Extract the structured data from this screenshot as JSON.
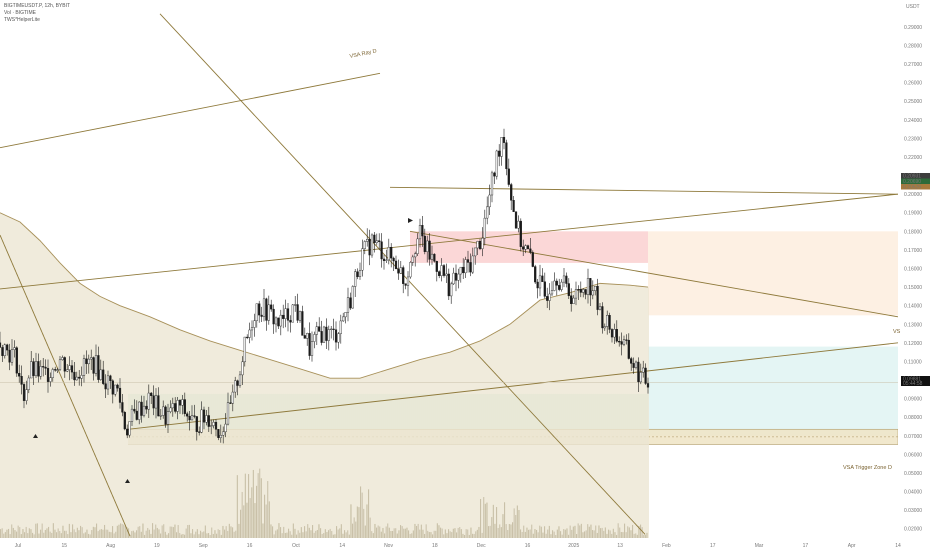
{
  "header": {
    "symbol_line": "BIGTIMEUSDT.P, 12h, BYBIT",
    "volume_line": "Vol · BIGTIME",
    "indicator_line": "TWS*HelperLite"
  },
  "price_axis": {
    "currency_label": "USDT"
  },
  "annotations": {
    "ray_label": "VSA Ray D",
    "trigger_label": "VSA Trigger Zone D",
    "edge_label": "VS"
  },
  "price_tags": [
    {
      "value": "0.20931",
      "color": "#3d3d3d"
    },
    {
      "value": "0.20690",
      "color": "#2e6b3a"
    },
    {
      "value": "0.20526",
      "color": "#a87a3c"
    },
    {
      "value": "0.09881",
      "color": "#111111",
      "sub": "05:44:58"
    }
  ],
  "colors": {
    "ribbon_fill": "#ece6d3",
    "ribbon_edge": "#a8915a",
    "line_color": "#8f7a3c",
    "red_zone": "#fbd3d3",
    "peach_zone": "#fdeee0",
    "green_zone": "#d4efe4",
    "cyan_zone": "#e1f4f3",
    "trigger_zone": "#f0e6c8",
    "candle": "#1a1a1a",
    "volume": "#c9c0a8"
  },
  "chart_data": {
    "type": "candlestick",
    "symbol": "BIGTIMEUSDT.P",
    "timeframe": "12h",
    "exchange": "BYBIT",
    "y_ticks": [
      "0.29000",
      "0.28000",
      "0.27000",
      "0.26000",
      "0.25000",
      "0.24000",
      "0.23000",
      "0.22000",
      "0.21000",
      "0.20000",
      "0.19000",
      "0.18000",
      "0.17000",
      "0.16000",
      "0.15000",
      "0.14000",
      "0.13000",
      "0.12000",
      "0.11000",
      "0.10000",
      "0.09000",
      "0.08000",
      "0.07000",
      "0.06000",
      "0.05000",
      "0.04000",
      "0.03000",
      "0.02000"
    ],
    "x_ticks": [
      "Jul",
      "15",
      "Aug",
      "19",
      "Sep",
      "16",
      "Oct",
      "14",
      "Nov",
      "18",
      "Dec",
      "16",
      "2025",
      "13",
      "Feb",
      "17",
      "Mar",
      "17",
      "Apr",
      "14"
    ],
    "ylim": [
      0.015,
      0.298
    ],
    "last_price": 0.09881,
    "price_path": [
      {
        "t": 0,
        "p": 0.12
      },
      {
        "t": 8,
        "p": 0.116
      },
      {
        "t": 16,
        "p": 0.112
      },
      {
        "t": 23,
        "p": 0.09
      },
      {
        "t": 30,
        "p": 0.105
      },
      {
        "t": 45,
        "p": 0.103
      },
      {
        "t": 60,
        "p": 0.111
      },
      {
        "t": 75,
        "p": 0.104
      },
      {
        "t": 93,
        "p": 0.11
      },
      {
        "t": 105,
        "p": 0.1
      },
      {
        "t": 118,
        "p": 0.094
      },
      {
        "t": 126,
        "p": 0.073
      },
      {
        "t": 135,
        "p": 0.082
      },
      {
        "t": 150,
        "p": 0.09
      },
      {
        "t": 165,
        "p": 0.08
      },
      {
        "t": 180,
        "p": 0.086
      },
      {
        "t": 195,
        "p": 0.076
      },
      {
        "t": 208,
        "p": 0.081
      },
      {
        "t": 220,
        "p": 0.072
      },
      {
        "t": 232,
        "p": 0.087
      },
      {
        "t": 245,
        "p": 0.118
      },
      {
        "t": 256,
        "p": 0.14
      },
      {
        "t": 265,
        "p": 0.138
      },
      {
        "t": 280,
        "p": 0.13
      },
      {
        "t": 295,
        "p": 0.14
      },
      {
        "t": 310,
        "p": 0.116
      },
      {
        "t": 320,
        "p": 0.126
      },
      {
        "t": 335,
        "p": 0.124
      },
      {
        "t": 350,
        "p": 0.143
      },
      {
        "t": 360,
        "p": 0.165
      },
      {
        "t": 372,
        "p": 0.175
      },
      {
        "t": 385,
        "p": 0.168
      },
      {
        "t": 398,
        "p": 0.162
      },
      {
        "t": 405,
        "p": 0.152
      },
      {
        "t": 412,
        "p": 0.17
      },
      {
        "t": 420,
        "p": 0.178
      },
      {
        "t": 428,
        "p": 0.168
      },
      {
        "t": 440,
        "p": 0.16
      },
      {
        "t": 450,
        "p": 0.15
      },
      {
        "t": 462,
        "p": 0.158
      },
      {
        "t": 472,
        "p": 0.164
      },
      {
        "t": 482,
        "p": 0.178
      },
      {
        "t": 490,
        "p": 0.2
      },
      {
        "t": 497,
        "p": 0.22
      },
      {
        "t": 503,
        "p": 0.235
      },
      {
        "t": 508,
        "p": 0.21
      },
      {
        "t": 514,
        "p": 0.19
      },
      {
        "t": 520,
        "p": 0.176
      },
      {
        "t": 528,
        "p": 0.168
      },
      {
        "t": 536,
        "p": 0.155
      },
      {
        "t": 545,
        "p": 0.145
      },
      {
        "t": 555,
        "p": 0.158
      },
      {
        "t": 565,
        "p": 0.15
      },
      {
        "t": 575,
        "p": 0.144
      },
      {
        "t": 585,
        "p": 0.152
      },
      {
        "t": 593,
        "p": 0.15
      },
      {
        "t": 600,
        "p": 0.135
      },
      {
        "t": 610,
        "p": 0.128
      },
      {
        "t": 620,
        "p": 0.122
      },
      {
        "t": 632,
        "p": 0.11
      },
      {
        "t": 640,
        "p": 0.102
      },
      {
        "t": 648,
        "p": 0.0988
      }
    ],
    "ribbon_path": [
      {
        "t": 0,
        "p": 0.19
      },
      {
        "t": 20,
        "p": 0.185
      },
      {
        "t": 40,
        "p": 0.175
      },
      {
        "t": 60,
        "p": 0.163
      },
      {
        "t": 80,
        "p": 0.152
      },
      {
        "t": 100,
        "p": 0.145
      },
      {
        "t": 120,
        "p": 0.14
      },
      {
        "t": 150,
        "p": 0.134
      },
      {
        "t": 180,
        "p": 0.127
      },
      {
        "t": 210,
        "p": 0.121
      },
      {
        "t": 240,
        "p": 0.116
      },
      {
        "t": 270,
        "p": 0.111
      },
      {
        "t": 300,
        "p": 0.106
      },
      {
        "t": 330,
        "p": 0.101
      },
      {
        "t": 360,
        "p": 0.101
      },
      {
        "t": 390,
        "p": 0.106
      },
      {
        "t": 420,
        "p": 0.111
      },
      {
        "t": 450,
        "p": 0.115
      },
      {
        "t": 480,
        "p": 0.121
      },
      {
        "t": 510,
        "p": 0.13
      },
      {
        "t": 540,
        "p": 0.143
      },
      {
        "t": 570,
        "p": 0.147
      },
      {
        "t": 600,
        "p": 0.152
      },
      {
        "t": 630,
        "p": 0.151
      },
      {
        "t": 648,
        "p": 0.15
      }
    ],
    "lines": [
      {
        "name": "ray",
        "from": [
          0,
          0.225
        ],
        "to": [
          380,
          0.265
        ]
      },
      {
        "name": "diag-left-1",
        "from": [
          0,
          0.178
        ],
        "to": [
          130,
          0.016
        ]
      },
      {
        "name": "diag-left-2",
        "from": [
          160,
          0.297
        ],
        "to": [
          645,
          0.017
        ]
      },
      {
        "name": "rising-1",
        "from": [
          0,
          0.149
        ],
        "to": [
          898,
          0.2
        ]
      },
      {
        "name": "horizontal-top",
        "from": [
          390,
          0.2037
        ],
        "to": [
          898,
          0.2
        ]
      },
      {
        "name": "falling",
        "from": [
          410,
          0.18
        ],
        "to": [
          898,
          0.134
        ]
      },
      {
        "name": "rising-2",
        "from": [
          128,
          0.0735
        ],
        "to": [
          898,
          0.12
        ]
      },
      {
        "name": "last-price-line",
        "from": [
          0,
          0.0988
        ],
        "to": [
          898,
          0.0988
        ]
      }
    ],
    "zones": [
      {
        "name": "red",
        "x": [
          410,
          648
        ],
        "y": [
          0.163,
          0.18
        ]
      },
      {
        "name": "peach",
        "x": [
          648,
          898
        ],
        "y": [
          0.1348,
          0.18
        ]
      },
      {
        "name": "green",
        "x": [
          128,
          648
        ],
        "y": [
          0.0735,
          0.0925
        ]
      },
      {
        "name": "cyan",
        "x": [
          648,
          898
        ],
        "y": [
          0.07,
          0.118
        ]
      },
      {
        "name": "trigger",
        "x": [
          128,
          898
        ],
        "y": [
          0.0653,
          0.0735
        ]
      }
    ]
  }
}
